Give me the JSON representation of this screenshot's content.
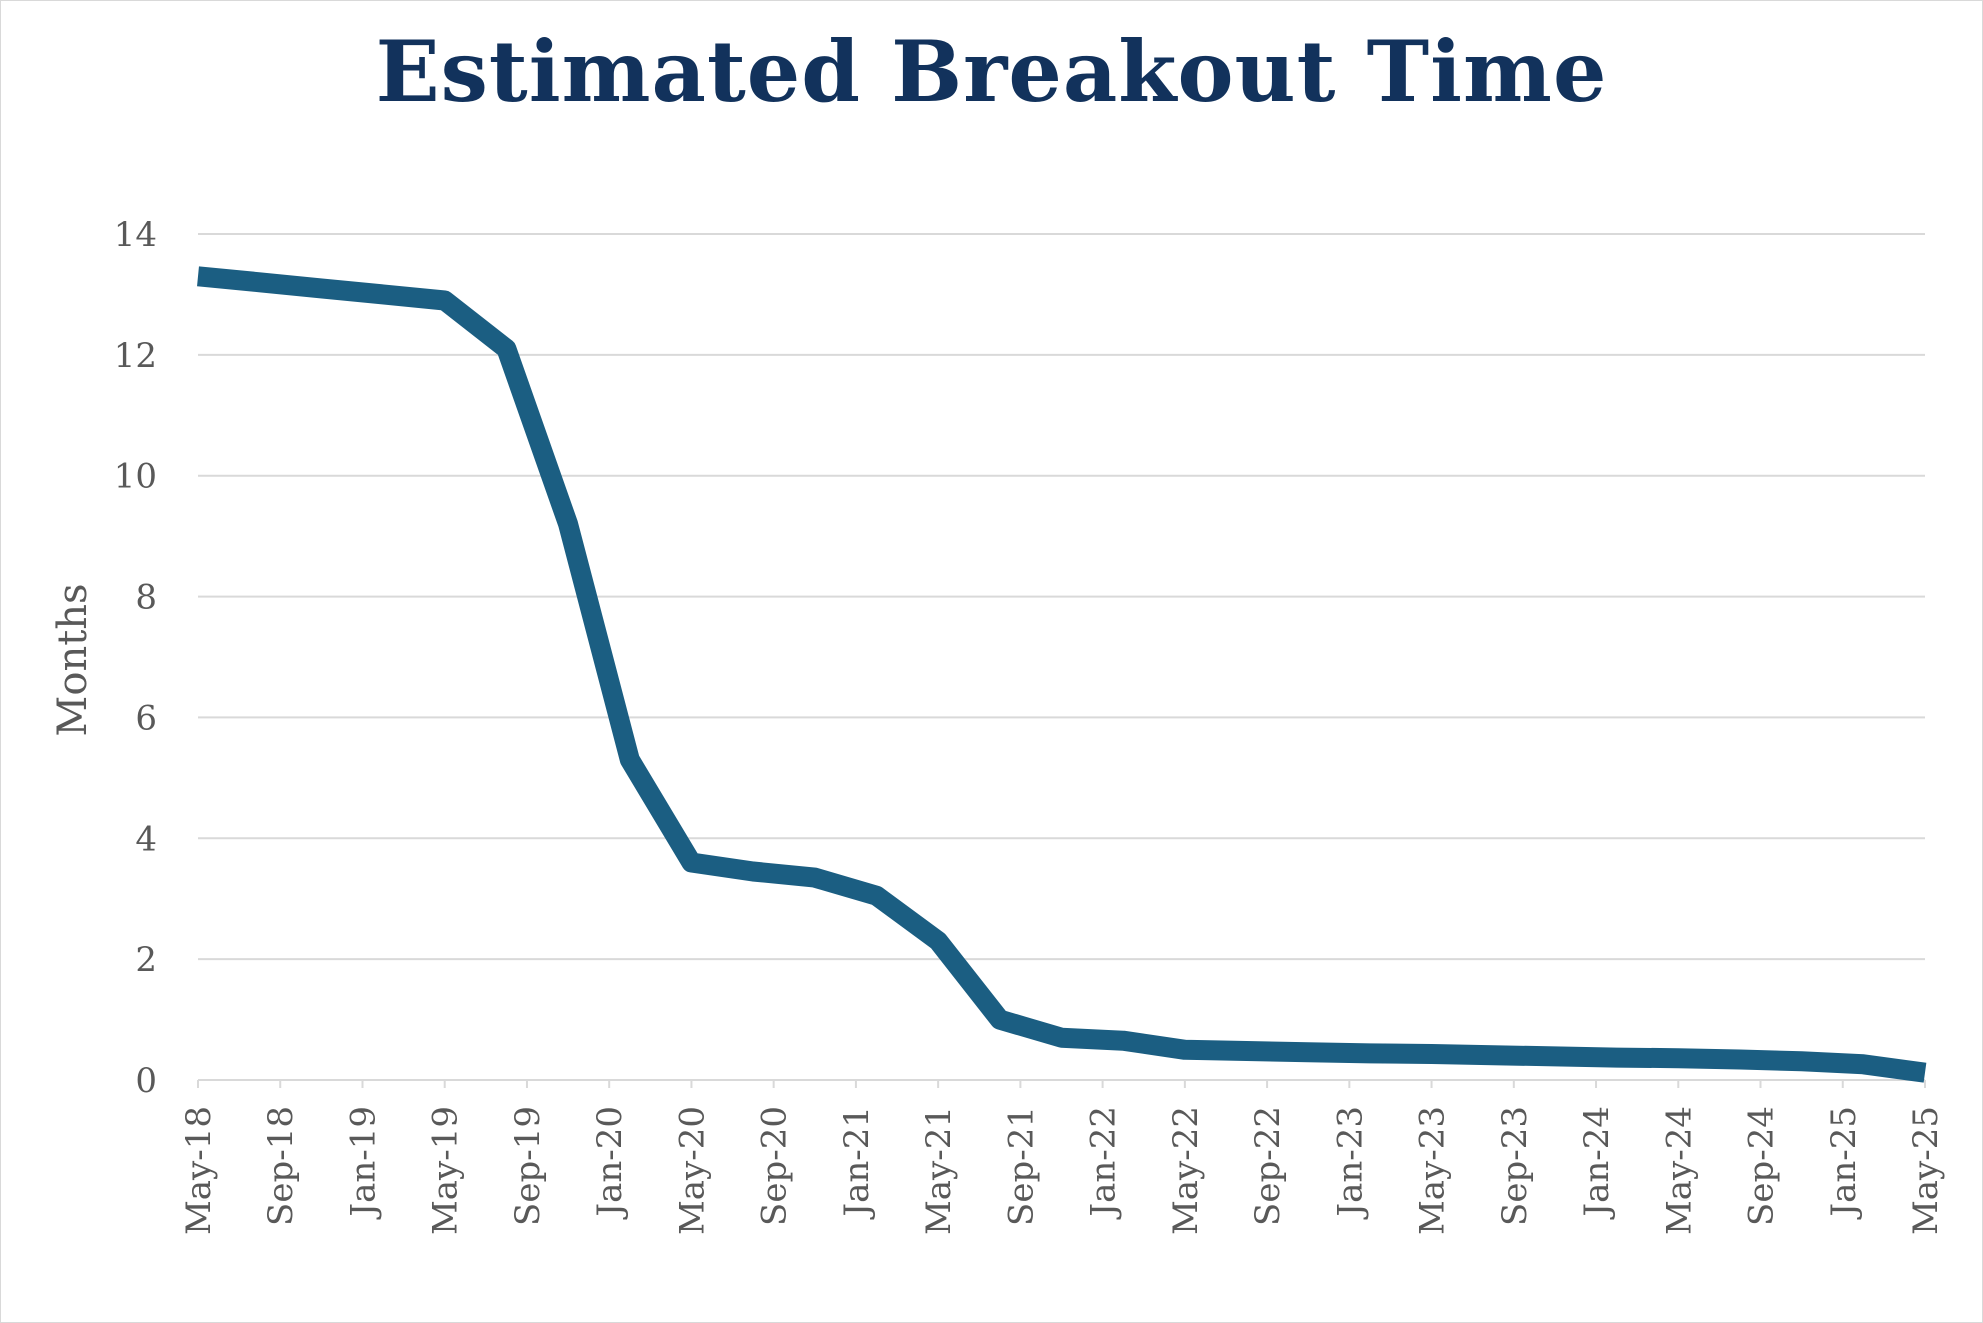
{
  "chart_data": {
    "type": "line",
    "title": "Estimated Breakout Time",
    "xlabel": "",
    "ylabel": "Months",
    "ylim": [
      0,
      14
    ],
    "yticks": [
      0,
      2,
      4,
      6,
      8,
      10,
      12,
      14
    ],
    "grid": true,
    "legend": "none",
    "colors": {
      "series": "#1b5e82",
      "title": "#12325c",
      "grid": "#d9d9d9",
      "tick_text": "#595959"
    },
    "x_tick_labels": [
      "May-18",
      "Sep-18",
      "Jan-19",
      "May-19",
      "Sep-19",
      "Jan-20",
      "May-20",
      "Sep-20",
      "Jan-21",
      "May-21",
      "Sep-21",
      "Jan-22",
      "May-22",
      "Sep-22",
      "Jan-23",
      "May-23",
      "Sep-23",
      "Jan-24",
      "May-24",
      "Sep-24",
      "Jan-25",
      "May-25"
    ],
    "series": [
      {
        "x": [
          "May-18",
          "Aug-18",
          "Nov-18",
          "Feb-19",
          "May-19",
          "Aug-19",
          "Nov-19",
          "Feb-20",
          "May-20",
          "Aug-20",
          "Nov-20",
          "Feb-21",
          "May-21",
          "Aug-21",
          "Nov-21",
          "Feb-22",
          "May-22",
          "Aug-22",
          "Nov-22",
          "Feb-23",
          "May-23",
          "Aug-23",
          "Nov-23",
          "Feb-24",
          "May-24",
          "Aug-24",
          "Nov-24",
          "Feb-25",
          "May-25"
        ],
        "values": [
          13.3,
          13.2,
          13.1,
          13.0,
          12.9,
          12.1,
          9.2,
          5.3,
          3.6,
          3.45,
          3.35,
          3.05,
          2.3,
          1.0,
          0.7,
          0.65,
          0.5,
          0.48,
          0.46,
          0.44,
          0.43,
          0.41,
          0.39,
          0.37,
          0.36,
          0.34,
          0.31,
          0.26,
          0.12
        ]
      }
    ]
  }
}
